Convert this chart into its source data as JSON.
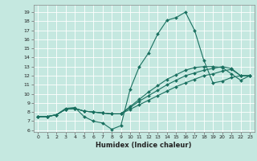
{
  "title": "",
  "xlabel": "Humidex (Indice chaleur)",
  "ylabel": "",
  "bg_color": "#c5e8e0",
  "grid_color": "#ffffff",
  "line_color": "#1a7060",
  "xlim": [
    -0.5,
    23.5
  ],
  "ylim": [
    5.8,
    19.8
  ],
  "xticks": [
    0,
    1,
    2,
    3,
    4,
    5,
    6,
    7,
    8,
    9,
    10,
    11,
    12,
    13,
    14,
    15,
    16,
    17,
    18,
    19,
    20,
    21,
    22,
    23
  ],
  "yticks": [
    6,
    7,
    8,
    9,
    10,
    11,
    12,
    13,
    14,
    15,
    16,
    17,
    18,
    19
  ],
  "lines": [
    [
      7.5,
      7.5,
      7.7,
      8.4,
      8.5,
      7.5,
      7.0,
      6.8,
      6.1,
      6.5,
      10.5,
      13.0,
      14.5,
      16.6,
      18.1,
      18.4,
      19.0,
      17.0,
      13.7,
      11.2,
      11.4,
      11.8,
      12.0,
      12.0
    ],
    [
      7.5,
      7.5,
      7.7,
      8.3,
      8.4,
      8.1,
      8.0,
      7.9,
      7.8,
      7.8,
      8.3,
      8.8,
      9.3,
      9.8,
      10.3,
      10.8,
      11.2,
      11.6,
      12.0,
      12.2,
      12.5,
      12.7,
      12.0,
      12.0
    ],
    [
      7.5,
      7.5,
      7.7,
      8.3,
      8.4,
      8.1,
      8.0,
      7.9,
      7.8,
      7.8,
      8.5,
      9.2,
      9.8,
      10.4,
      11.0,
      11.5,
      12.0,
      12.3,
      12.6,
      12.8,
      13.0,
      12.8,
      12.0,
      12.0
    ],
    [
      7.5,
      7.5,
      7.7,
      8.3,
      8.4,
      8.1,
      8.0,
      7.9,
      7.8,
      7.8,
      8.6,
      9.4,
      10.2,
      10.9,
      11.6,
      12.1,
      12.6,
      12.9,
      13.0,
      13.0,
      12.9,
      12.2,
      11.5,
      12.0
    ]
  ]
}
